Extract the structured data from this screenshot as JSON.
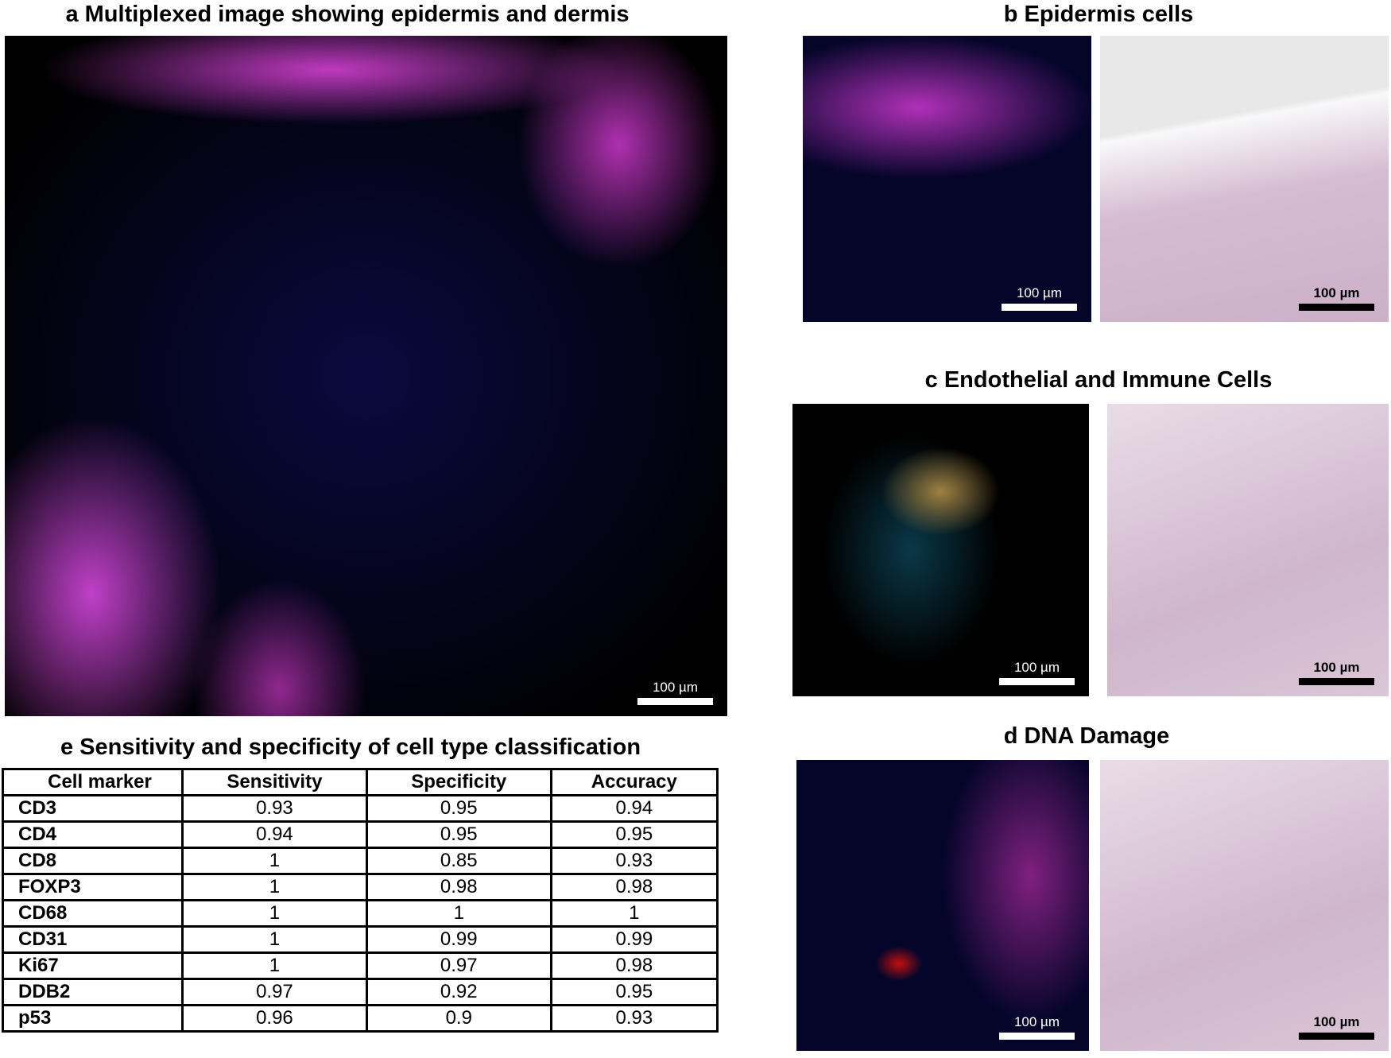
{
  "panels": {
    "a": {
      "title": "a Multiplexed image showing epidermis and dermis",
      "scale_bar": "100 µm"
    },
    "b": {
      "title": "b Epidermis cells",
      "scale_bars": [
        "100 µm",
        "100 µm"
      ]
    },
    "c": {
      "title": "c Endothelial and Immune Cells",
      "scale_bars": [
        "100 µm",
        "100 µm"
      ]
    },
    "d": {
      "title": "d DNA Damage",
      "scale_bars": [
        "100 µm",
        "100 µm"
      ]
    }
  },
  "table": {
    "title": "e Sensitivity and specificity of cell type classification",
    "header": [
      "Cell marker",
      "Sensitivity",
      "Specificity",
      "Accuracy"
    ],
    "rows": [
      [
        "CD3",
        0.93,
        0.95,
        0.94
      ],
      [
        "CD4",
        0.94,
        0.95,
        0.95
      ],
      [
        "CD8",
        1,
        0.85,
        0.93
      ],
      [
        "FOXP3",
        1,
        0.98,
        0.98
      ],
      [
        "CD68",
        1,
        1,
        1
      ],
      [
        "CD31",
        1,
        0.99,
        0.99
      ],
      [
        "Ki67",
        1,
        0.97,
        0.98
      ],
      [
        "DDB2",
        0.97,
        0.92,
        0.95
      ],
      [
        "p53",
        0.96,
        0.9,
        0.93
      ]
    ]
  }
}
